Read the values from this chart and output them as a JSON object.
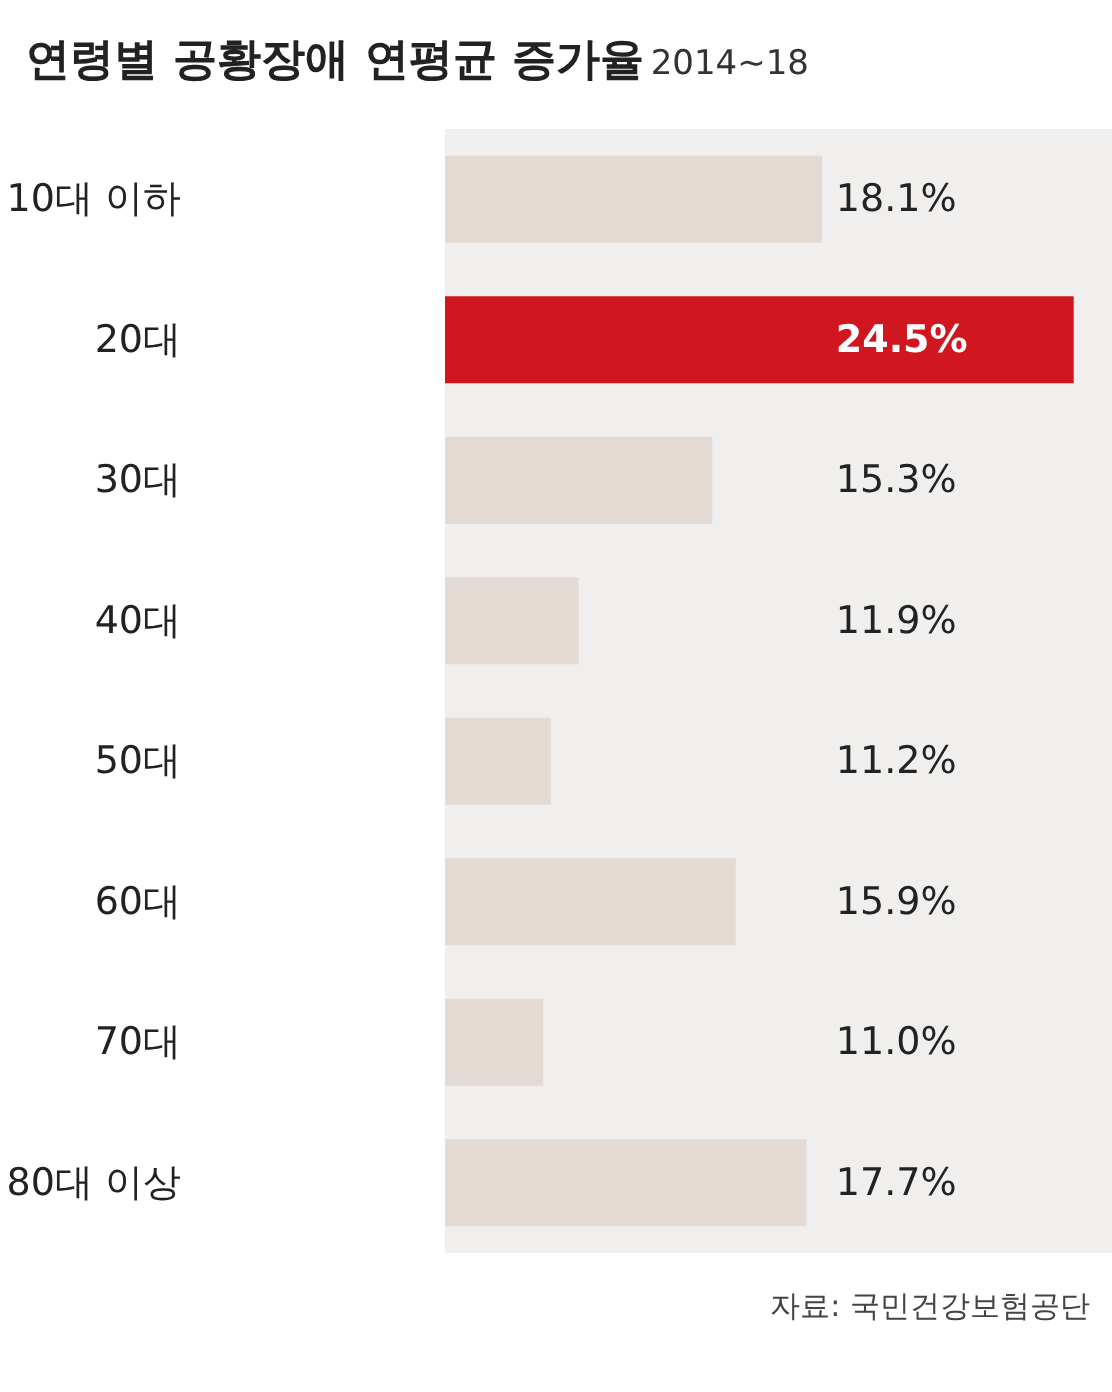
{
  "chart_data": {
    "type": "bar",
    "orientation": "horizontal",
    "title": "연령별 공황장애 연평균 증가율",
    "subtitle": "2014~18",
    "categories": [
      "10대 이하",
      "20대",
      "30대",
      "40대",
      "50대",
      "60대",
      "70대",
      "80대 이상"
    ],
    "values": [
      18.1,
      24.5,
      15.3,
      11.9,
      11.2,
      15.9,
      11.0,
      17.7
    ],
    "colors": [
      "#e2dad3",
      "#d0161f",
      "#e2dad3",
      "#e2dad3",
      "#e2dad3",
      "#e2dad3",
      "#e2dad3",
      "#e2dad3"
    ],
    "value_labels": [
      "18.1%",
      "24.5%",
      "15.3%",
      "11.9%",
      "11.2%",
      "15.9%",
      "11.0%",
      "17.7%"
    ],
    "xlim": [
      8.5,
      25.5
    ],
    "tick_labels": "y",
    "grid": false,
    "annotations": [
      "자료: 국민건강보험공단"
    ]
  }
}
